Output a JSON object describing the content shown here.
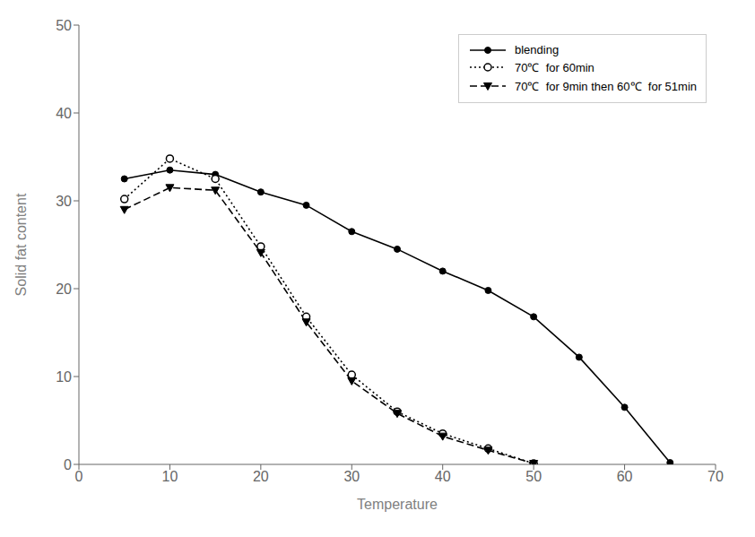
{
  "chart_data": {
    "type": "line",
    "xlabel": "Temperature",
    "ylabel": "Solid fat content",
    "xlim": [
      0,
      70
    ],
    "ylim": [
      0,
      50
    ],
    "xticks": [
      0,
      10,
      20,
      30,
      40,
      50,
      60,
      70
    ],
    "yticks": [
      0,
      10,
      20,
      30,
      40,
      50
    ],
    "grid": false,
    "legend": "upper right",
    "series": [
      {
        "name": "blending",
        "color": "black",
        "marker": "circle",
        "line_style": "solid",
        "x": [
          5,
          10,
          15,
          20,
          25,
          30,
          35,
          40,
          45,
          50,
          55,
          60,
          65
        ],
        "values": [
          32.5,
          33.5,
          33.0,
          31.0,
          29.5,
          26.5,
          24.5,
          22.0,
          19.8,
          16.8,
          12.2,
          6.5,
          0.2
        ]
      },
      {
        "name": "70℃  for 60min",
        "color": "black",
        "marker": "circle-open",
        "line_style": "dotted",
        "x": [
          5,
          10,
          15,
          20,
          25,
          30,
          35,
          40,
          45,
          50
        ],
        "values": [
          30.2,
          34.8,
          32.5,
          24.8,
          16.8,
          10.2,
          6.0,
          3.5,
          1.8,
          0.1
        ]
      },
      {
        "name": "70℃  for 9min then 60℃  for 51min",
        "color": "black",
        "marker": "triangle-down",
        "line_style": "dashed",
        "x": [
          5,
          10,
          15,
          20,
          25,
          30,
          35,
          40,
          45,
          50
        ],
        "values": [
          29.0,
          31.5,
          31.2,
          24.1,
          16.2,
          9.5,
          5.8,
          3.2,
          1.6,
          0.1
        ]
      }
    ]
  }
}
